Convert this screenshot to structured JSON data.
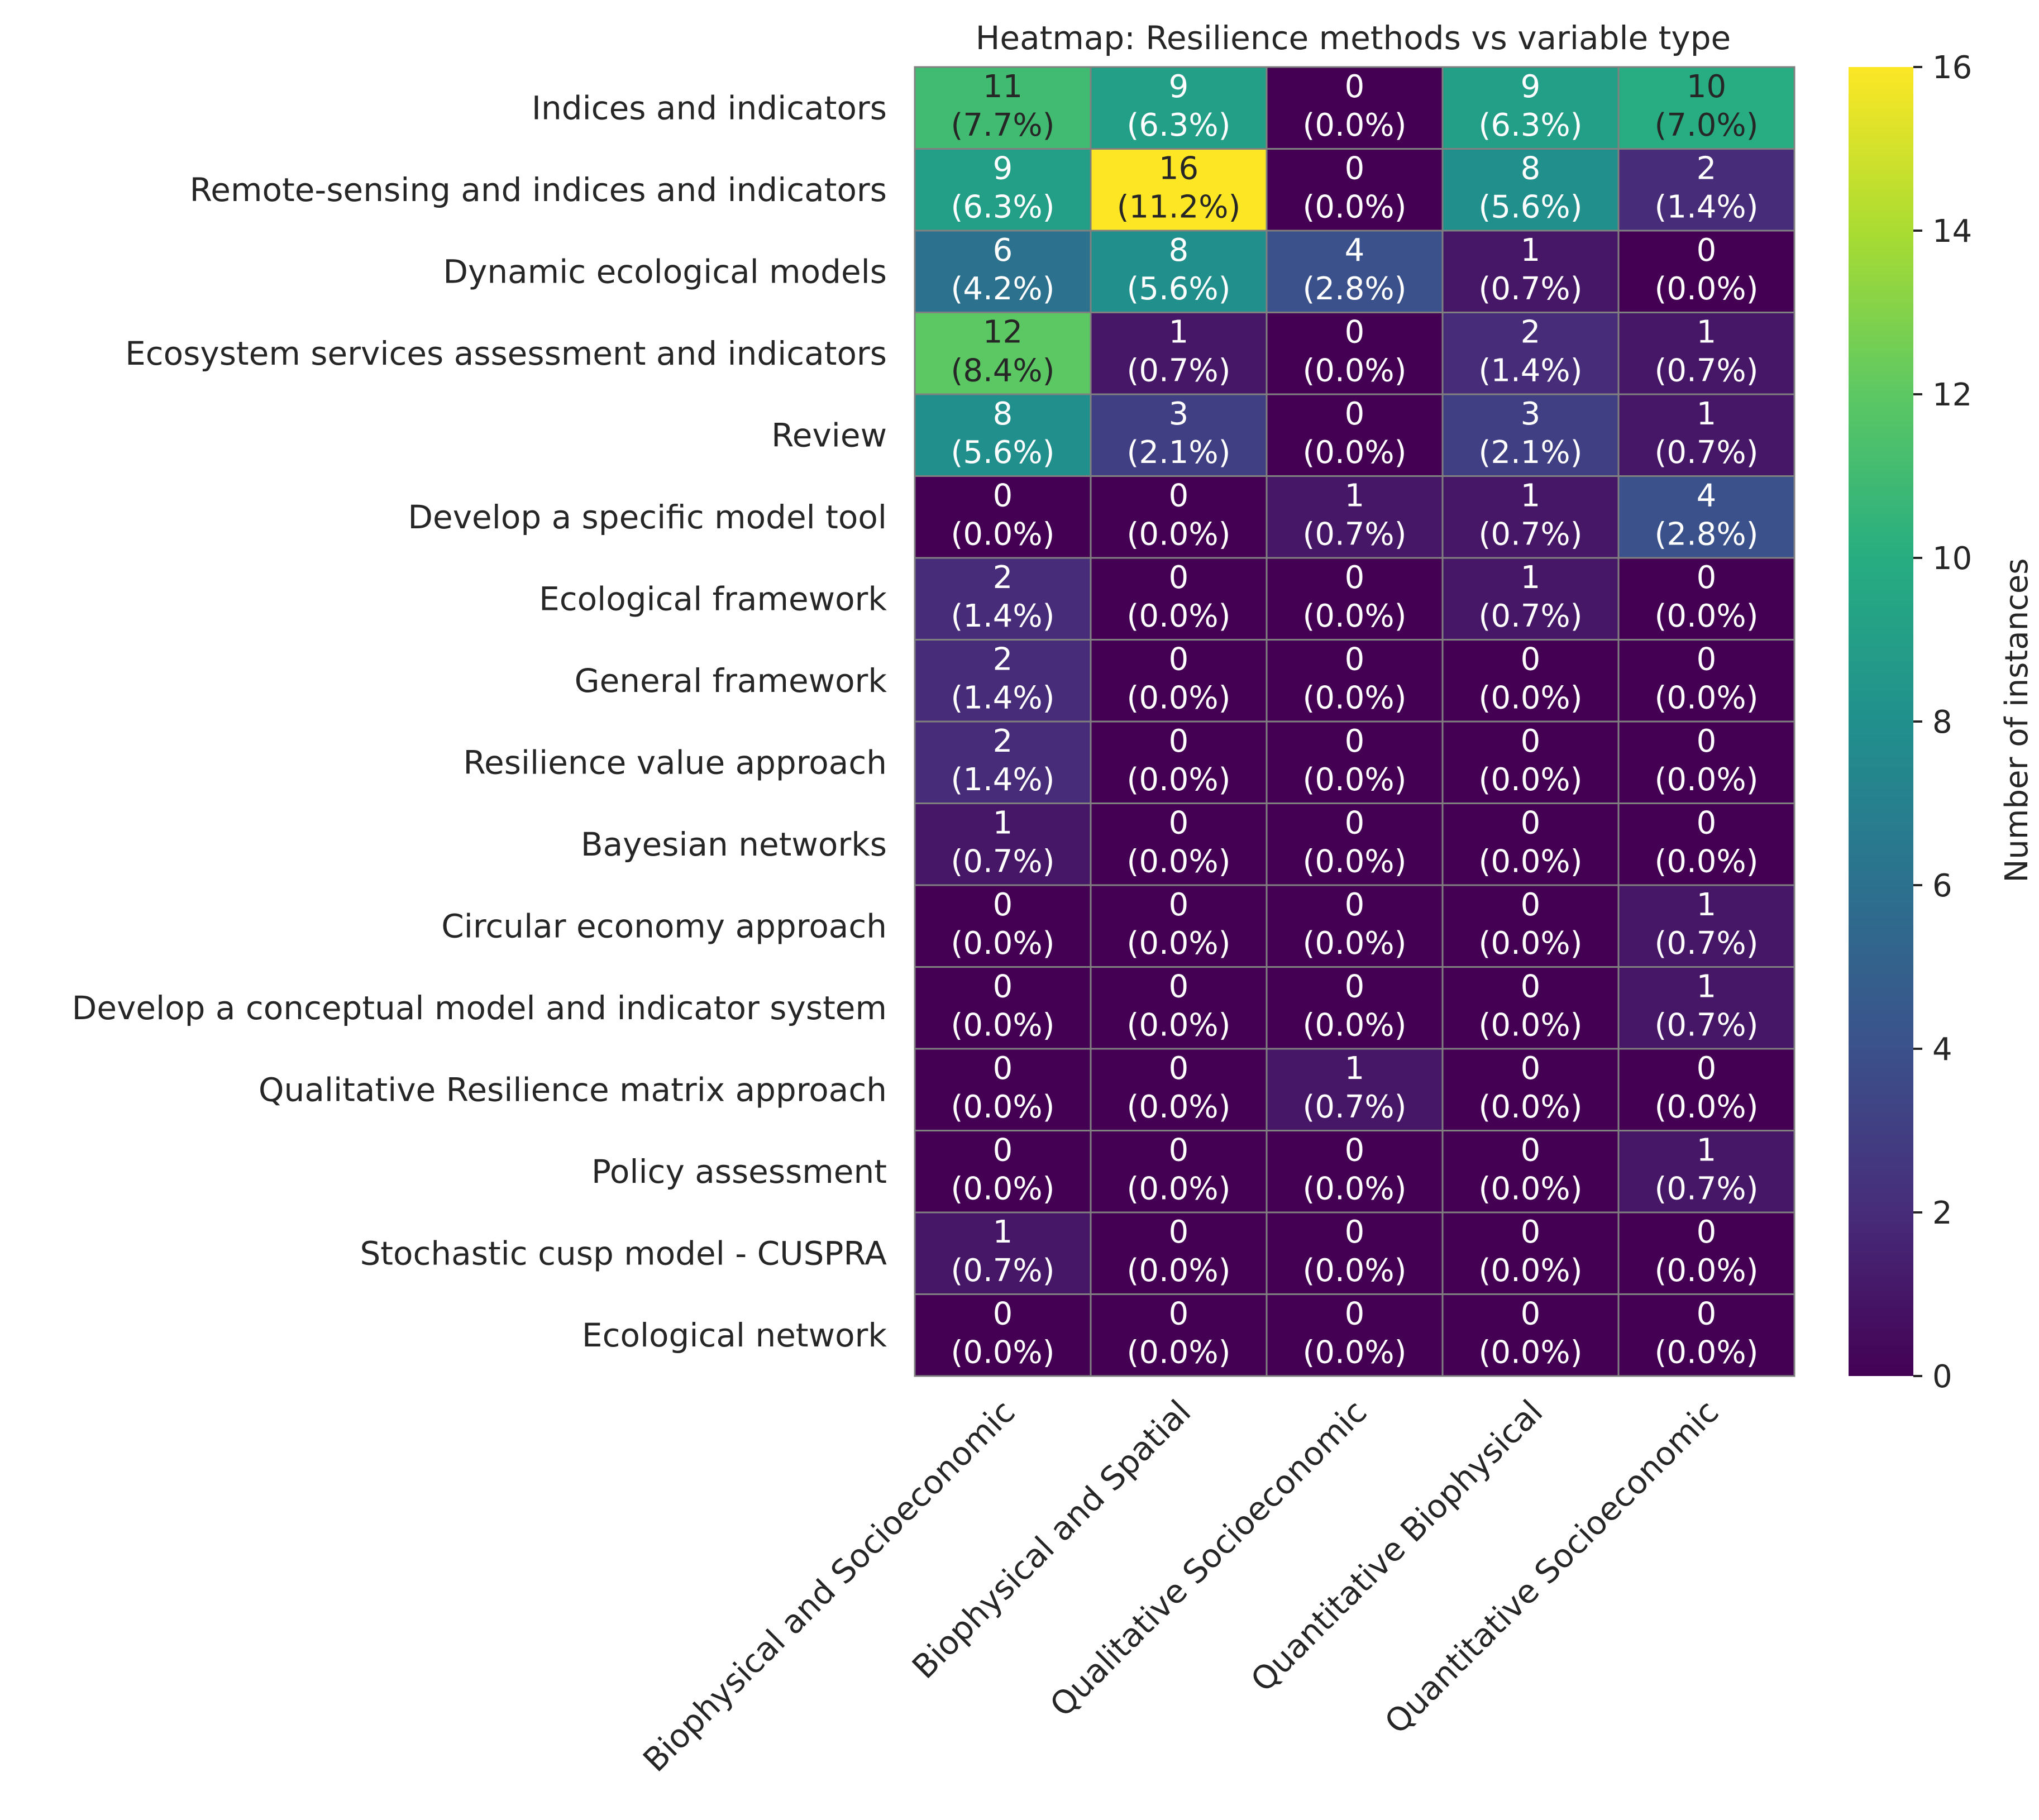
{
  "chart_data": {
    "type": "heatmap",
    "title": "Heatmap: Resilience methods vs variable type",
    "columns": [
      "Biophysical and Socioeconomic",
      "Biophysical and Spatial",
      "Qualitative Socioeconomic",
      "Quantitative Biophysical",
      "Quantitative Socioeconomic"
    ],
    "rows": [
      "Indices and indicators",
      "Remote-sensing and indices and indicators",
      "Dynamic ecological models",
      "Ecosystem services assessment and indicators",
      "Review",
      "Develop a specific model tool",
      "Ecological framework",
      "General framework",
      "Resilience value approach",
      "Bayesian networks",
      "Circular economy approach",
      "Develop a conceptual model and indicator system",
      "Qualitative Resilience matrix approach",
      "Policy assessment",
      "Stochastic cusp model - CUSPRA",
      "Ecological network"
    ],
    "values": [
      [
        11,
        9,
        0,
        9,
        10
      ],
      [
        9,
        16,
        0,
        8,
        2
      ],
      [
        6,
        8,
        4,
        1,
        0
      ],
      [
        12,
        1,
        0,
        2,
        1
      ],
      [
        8,
        3,
        0,
        3,
        1
      ],
      [
        0,
        0,
        1,
        1,
        4
      ],
      [
        2,
        0,
        0,
        1,
        0
      ],
      [
        2,
        0,
        0,
        0,
        0
      ],
      [
        2,
        0,
        0,
        0,
        0
      ],
      [
        1,
        0,
        0,
        0,
        0
      ],
      [
        0,
        0,
        0,
        0,
        1
      ],
      [
        0,
        0,
        0,
        0,
        1
      ],
      [
        0,
        0,
        1,
        0,
        0
      ],
      [
        0,
        0,
        0,
        0,
        1
      ],
      [
        1,
        0,
        0,
        0,
        0
      ],
      [
        0,
        0,
        0,
        0,
        0
      ]
    ],
    "percent_labels": [
      [
        "(7.7%)",
        "(6.3%)",
        "(0.0%)",
        "(6.3%)",
        "(7.0%)"
      ],
      [
        "(6.3%)",
        "(11.2%)",
        "(0.0%)",
        "(5.6%)",
        "(1.4%)"
      ],
      [
        "(4.2%)",
        "(5.6%)",
        "(2.8%)",
        "(0.7%)",
        "(0.0%)"
      ],
      [
        "(8.4%)",
        "(0.7%)",
        "(0.0%)",
        "(1.4%)",
        "(0.7%)"
      ],
      [
        "(5.6%)",
        "(2.1%)",
        "(0.0%)",
        "(2.1%)",
        "(0.7%)"
      ],
      [
        "(0.0%)",
        "(0.0%)",
        "(0.7%)",
        "(0.7%)",
        "(2.8%)"
      ],
      [
        "(1.4%)",
        "(0.0%)",
        "(0.0%)",
        "(0.7%)",
        "(0.0%)"
      ],
      [
        "(1.4%)",
        "(0.0%)",
        "(0.0%)",
        "(0.0%)",
        "(0.0%)"
      ],
      [
        "(1.4%)",
        "(0.0%)",
        "(0.0%)",
        "(0.0%)",
        "(0.0%)"
      ],
      [
        "(0.7%)",
        "(0.0%)",
        "(0.0%)",
        "(0.0%)",
        "(0.0%)"
      ],
      [
        "(0.0%)",
        "(0.0%)",
        "(0.0%)",
        "(0.0%)",
        "(0.7%)"
      ],
      [
        "(0.0%)",
        "(0.0%)",
        "(0.0%)",
        "(0.0%)",
        "(0.7%)"
      ],
      [
        "(0.0%)",
        "(0.0%)",
        "(0.7%)",
        "(0.0%)",
        "(0.0%)"
      ],
      [
        "(0.0%)",
        "(0.0%)",
        "(0.0%)",
        "(0.0%)",
        "(0.7%)"
      ],
      [
        "(0.7%)",
        "(0.0%)",
        "(0.0%)",
        "(0.0%)",
        "(0.0%)"
      ],
      [
        "(0.0%)",
        "(0.0%)",
        "(0.0%)",
        "(0.0%)",
        "(0.0%)"
      ]
    ],
    "colorbar": {
      "label": "Number of instances",
      "range": [
        0,
        16
      ],
      "ticks": [
        "0",
        "2",
        "4",
        "6",
        "8",
        "10",
        "12",
        "14",
        "16"
      ],
      "colormap": "viridis"
    },
    "colors": {
      "cell_border": "#808080",
      "text_light": "#ffffff",
      "text_dark": "#262626"
    },
    "grid": false,
    "legend": "colorbar-right"
  }
}
